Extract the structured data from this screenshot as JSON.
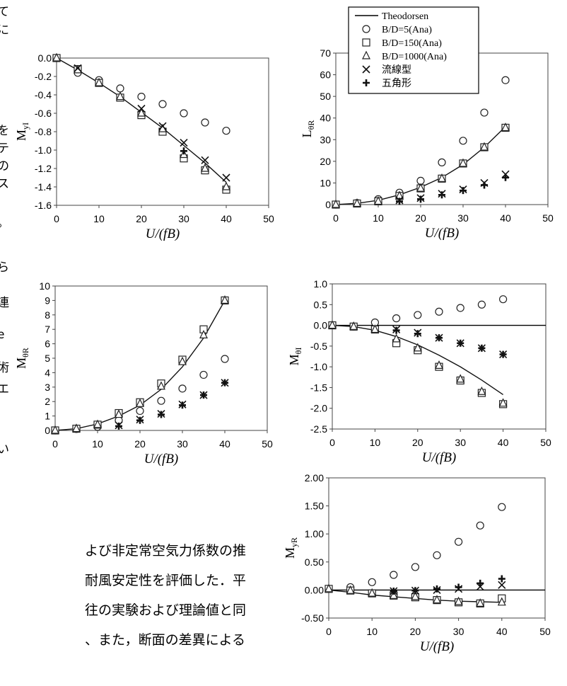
{
  "legend": {
    "entries": [
      {
        "key": "theodorsen",
        "label": "Theodorsen",
        "marker": "line"
      },
      {
        "key": "bd5",
        "label": "B/D=5(Ana)",
        "marker": "circle"
      },
      {
        "key": "bd150",
        "label": "B/D=150(Ana)",
        "marker": "square"
      },
      {
        "key": "bd1000",
        "label": "B/D=1000(Ana)",
        "marker": "triangle"
      },
      {
        "key": "streamline",
        "label": "流線型",
        "marker": "x"
      },
      {
        "key": "pentagon",
        "label": "五角形",
        "marker": "plus"
      }
    ]
  },
  "left_margin_chars": [
    "て",
    "に",
    "を",
    "テ",
    "の",
    "ス",
    "。",
    "ら",
    "連",
    "e",
    "術",
    "エ",
    "い"
  ],
  "body_lines": [
    "よび非定常空気力係数の推",
    "耐風安定性を評価した．平",
    "往の実験および理論値と同",
    "、また，断面の差異による"
  ],
  "chart_data": [
    {
      "id": "myi",
      "type": "scatter",
      "ylabel": "M",
      "ylabel_sub": "yI",
      "xlabel": "U/(fB)",
      "xlim": [
        0,
        50
      ],
      "ylim": [
        -1.6,
        0.0
      ],
      "xticks": [
        "0",
        "10",
        "20",
        "30",
        "40",
        "50"
      ],
      "yticks": [
        "0.0",
        "-0.2",
        "-0.4",
        "-0.6",
        "-0.8",
        "-1.0",
        "-1.2",
        "-1.4",
        "-1.6"
      ],
      "series": [
        {
          "key": "theodorsen",
          "x": [
            0,
            5,
            10,
            15,
            20,
            25,
            30,
            35,
            40
          ],
          "y": [
            0,
            -0.13,
            -0.27,
            -0.42,
            -0.59,
            -0.76,
            -0.95,
            -1.14,
            -1.35
          ]
        },
        {
          "key": "bd5",
          "x": [
            0,
            5,
            10,
            15,
            20,
            25,
            30,
            35,
            40
          ],
          "y": [
            0,
            -0.16,
            -0.24,
            -0.33,
            -0.42,
            -0.5,
            -0.6,
            -0.7,
            -0.79
          ]
        },
        {
          "key": "bd150",
          "x": [
            0,
            5,
            10,
            15,
            20,
            25,
            30,
            35,
            40
          ],
          "y": [
            0,
            -0.12,
            -0.27,
            -0.43,
            -0.62,
            -0.8,
            -1.09,
            -1.22,
            -1.43
          ]
        },
        {
          "key": "bd1000",
          "x": [
            0,
            5,
            10,
            15,
            20,
            25,
            30,
            35,
            40
          ],
          "y": [
            0,
            -0.13,
            -0.27,
            -0.42,
            -0.6,
            -0.77,
            -1.05,
            -1.2,
            -1.4
          ]
        },
        {
          "key": "streamline",
          "x": [
            5,
            20,
            25,
            30,
            35,
            40
          ],
          "y": [
            -0.11,
            -0.55,
            -0.74,
            -0.92,
            -1.11,
            -1.3
          ]
        },
        {
          "key": "pentagon",
          "x": [
            30
          ],
          "y": [
            -1.01
          ]
        }
      ]
    },
    {
      "id": "ltr",
      "type": "scatter",
      "ylabel": "L",
      "ylabel_sub": "θR",
      "xlabel": "U/(fB)",
      "xlim": [
        0,
        50
      ],
      "ylim": [
        0,
        70
      ],
      "xticks": [
        "0",
        "10",
        "20",
        "30",
        "40",
        "50"
      ],
      "yticks": [
        "0",
        "10",
        "20",
        "30",
        "40",
        "50",
        "60",
        "70"
      ],
      "series": [
        {
          "key": "theodorsen",
          "x": [
            0,
            5,
            10,
            15,
            20,
            25,
            30,
            35,
            40
          ],
          "y": [
            0,
            0.6,
            2.0,
            4.5,
            8.0,
            12.5,
            18.5,
            26.5,
            36
          ]
        },
        {
          "key": "bd5",
          "x": [
            0,
            5,
            10,
            15,
            20,
            25,
            30,
            35,
            40
          ],
          "y": [
            0,
            0.7,
            2.5,
            5.5,
            11,
            19.5,
            29.5,
            42.5,
            57.5
          ]
        },
        {
          "key": "bd150",
          "x": [
            0,
            5,
            10,
            15,
            20,
            25,
            30,
            35,
            40
          ],
          "y": [
            0,
            0.5,
            1.5,
            4,
            7.5,
            12,
            19,
            26.5,
            35.5
          ]
        },
        {
          "key": "bd1000",
          "x": [
            0,
            5,
            10,
            15,
            20,
            25,
            30,
            35,
            40
          ],
          "y": [
            0,
            0.5,
            1.5,
            4,
            7.5,
            12,
            19,
            26.5,
            35.5
          ]
        },
        {
          "key": "streamline",
          "x": [
            15,
            20,
            25,
            30,
            35,
            40
          ],
          "y": [
            2,
            3,
            5,
            7,
            10,
            14
          ]
        },
        {
          "key": "pentagon",
          "x": [
            15,
            20,
            25,
            30,
            35,
            40
          ],
          "y": [
            1.5,
            2.5,
            4.5,
            6.5,
            9,
            12.5
          ]
        }
      ]
    },
    {
      "id": "mtr",
      "type": "scatter",
      "ylabel": "M",
      "ylabel_sub": "θR",
      "xlabel": "U/(fB)",
      "xlim": [
        0,
        50
      ],
      "ylim": [
        0,
        10
      ],
      "xticks": [
        "0",
        "10",
        "20",
        "30",
        "40",
        "50"
      ],
      "yticks": [
        "0",
        "1",
        "2",
        "3",
        "4",
        "5",
        "6",
        "7",
        "8",
        "9",
        "10"
      ],
      "series": [
        {
          "key": "theodorsen",
          "x": [
            0,
            5,
            10,
            15,
            20,
            25,
            30,
            35,
            40
          ],
          "y": [
            0,
            0.12,
            0.45,
            1.0,
            1.75,
            2.85,
            4.4,
            6.4,
            9.0
          ]
        },
        {
          "key": "bd5",
          "x": [
            0,
            5,
            10,
            15,
            20,
            25,
            30,
            35,
            40
          ],
          "y": [
            0,
            0.1,
            0.25,
            0.7,
            1.35,
            2.05,
            2.9,
            3.85,
            4.95
          ]
        },
        {
          "key": "bd150",
          "x": [
            0,
            5,
            10,
            15,
            20,
            25,
            30,
            35,
            40
          ],
          "y": [
            0,
            0.12,
            0.4,
            1.2,
            1.95,
            3.25,
            4.9,
            7.0,
            9.0
          ]
        },
        {
          "key": "bd1000",
          "x": [
            0,
            5,
            10,
            15,
            20,
            25,
            30,
            35,
            40
          ],
          "y": [
            0,
            0.12,
            0.4,
            1.1,
            1.85,
            3.05,
            4.75,
            6.6,
            9.0
          ]
        },
        {
          "key": "streamline",
          "x": [
            15,
            20,
            25,
            30,
            35,
            40
          ],
          "y": [
            0.35,
            0.75,
            1.15,
            1.8,
            2.45,
            3.3
          ]
        },
        {
          "key": "pentagon",
          "x": [
            15,
            20,
            25,
            30,
            35,
            40
          ],
          "y": [
            0.3,
            0.7,
            1.1,
            1.75,
            2.45,
            3.3
          ]
        }
      ]
    },
    {
      "id": "mti",
      "type": "scatter",
      "ylabel": "M",
      "ylabel_sub": "θI",
      "xlabel": "U/(fB)",
      "xlim": [
        0,
        50
      ],
      "ylim": [
        -2.5,
        1.0
      ],
      "xticks": [
        "0",
        "10",
        "20",
        "30",
        "40",
        "50"
      ],
      "yticks": [
        "1.0",
        "0.5",
        "0.0",
        "-0.5",
        "-1.0",
        "-1.5",
        "-2.0",
        "-2.5"
      ],
      "series": [
        {
          "key": "theodorsen",
          "x": [
            0,
            5,
            10,
            15,
            20,
            25,
            30,
            35,
            40
          ],
          "y": [
            0,
            -0.03,
            -0.12,
            -0.27,
            -0.47,
            -0.72,
            -1.0,
            -1.32,
            -1.67
          ]
        },
        {
          "key": "bd5",
          "x": [
            0,
            5,
            10,
            15,
            20,
            25,
            30,
            35,
            40
          ],
          "y": [
            0,
            -0.03,
            0.07,
            0.17,
            0.25,
            0.33,
            0.42,
            0.5,
            0.63
          ]
        },
        {
          "key": "bd150",
          "x": [
            0,
            5,
            10,
            15,
            20,
            25,
            30,
            35,
            40
          ],
          "y": [
            0,
            -0.03,
            -0.1,
            -0.43,
            -0.6,
            -1.0,
            -1.33,
            -1.63,
            -1.9
          ]
        },
        {
          "key": "bd1000",
          "x": [
            0,
            5,
            10,
            15,
            20,
            25,
            30,
            35,
            40
          ],
          "y": [
            0,
            -0.03,
            -0.1,
            -0.33,
            -0.55,
            -0.97,
            -1.3,
            -1.6,
            -1.88
          ]
        },
        {
          "key": "streamline",
          "x": [
            15,
            20,
            25,
            30,
            35,
            40
          ],
          "y": [
            -0.1,
            -0.18,
            -0.3,
            -0.43,
            -0.55,
            -0.7
          ]
        },
        {
          "key": "pentagon",
          "x": [
            15,
            20,
            25,
            30,
            35,
            40
          ],
          "y": [
            -0.12,
            -0.2,
            -0.3,
            -0.43,
            -0.55,
            -0.7
          ]
        }
      ]
    },
    {
      "id": "myr",
      "type": "scatter",
      "ylabel": "M",
      "ylabel_sub": "yR",
      "xlabel": "U/(fB)",
      "xlim": [
        0,
        50
      ],
      "ylim": [
        -0.5,
        2.0
      ],
      "xticks": [
        "0",
        "10",
        "20",
        "30",
        "40",
        "50"
      ],
      "yticks": [
        "2.00",
        "1.50",
        "1.00",
        "0.50",
        "0.00",
        "-0.50"
      ],
      "series": [
        {
          "key": "theodorsen",
          "x": [
            0,
            5,
            10,
            15,
            20,
            25,
            30,
            35,
            40
          ],
          "y": [
            0,
            -0.04,
            -0.09,
            -0.12,
            -0.15,
            -0.18,
            -0.2,
            -0.21,
            -0.22
          ]
        },
        {
          "key": "bd5",
          "x": [
            0,
            5,
            10,
            15,
            20,
            25,
            30,
            35,
            40
          ],
          "y": [
            0.02,
            0.05,
            0.14,
            0.27,
            0.41,
            0.62,
            0.86,
            1.15,
            1.48
          ]
        },
        {
          "key": "bd150",
          "x": [
            0,
            5,
            10,
            15,
            20,
            25,
            30,
            35,
            40
          ],
          "y": [
            0.02,
            -0.01,
            -0.06,
            -0.1,
            -0.13,
            -0.18,
            -0.22,
            -0.24,
            -0.15
          ]
        },
        {
          "key": "bd1000",
          "x": [
            0,
            5,
            10,
            15,
            20,
            25,
            30,
            35,
            40
          ],
          "y": [
            0.02,
            -0.01,
            -0.06,
            -0.1,
            -0.12,
            -0.18,
            -0.21,
            -0.24,
            -0.22
          ]
        },
        {
          "key": "streamline",
          "x": [
            15,
            20,
            25,
            30,
            35,
            40
          ],
          "y": [
            -0.02,
            -0.01,
            0.0,
            0.02,
            0.06,
            0.09
          ]
        },
        {
          "key": "pentagon",
          "x": [
            15,
            20,
            25,
            30,
            35,
            40
          ],
          "y": [
            -0.02,
            -0.01,
            0.02,
            0.05,
            0.12,
            0.2
          ]
        }
      ]
    }
  ]
}
